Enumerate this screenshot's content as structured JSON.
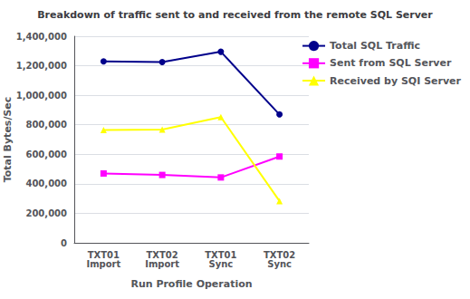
{
  "chart_data": {
    "type": "line",
    "title": "Breakdown of traffic sent to and received from the remote SQL Server",
    "xlabel": "Run Profile Operation",
    "ylabel": "Total Bytes/Sec",
    "categories": [
      "TXT01\nImport",
      "TXT02\nImport",
      "TXT01\nSync",
      "TXT02\nSync"
    ],
    "series": [
      {
        "name": "Total SQL Traffic",
        "color": "#00008B",
        "marker": "circle",
        "values": [
          1230000,
          1225000,
          1295000,
          870000
        ]
      },
      {
        "name": "Sent from SQL Server",
        "color": "#FF00FF",
        "marker": "square",
        "values": [
          470000,
          460000,
          443000,
          585000
        ]
      },
      {
        "name": "Received by SQI Server",
        "color": "#FFFF00",
        "marker": "triangle",
        "values": [
          765000,
          768000,
          852000,
          283000
        ]
      }
    ],
    "ylim": [
      0,
      1400000
    ],
    "yticks": [
      0,
      {
        "value": 200000,
        "label": "200,000"
      },
      {
        "value": 400000,
        "label": "400,000"
      },
      {
        "value": 600000,
        "label": "600,000"
      },
      {
        "value": 800000,
        "label": "800,000"
      },
      {
        "value": 1000000,
        "label": "1,000,000"
      },
      {
        "value": 1200000,
        "label": "1,200,000"
      },
      {
        "value": 1400000,
        "label": "1,400,000"
      }
    ],
    "grid": true,
    "legend": "right"
  }
}
